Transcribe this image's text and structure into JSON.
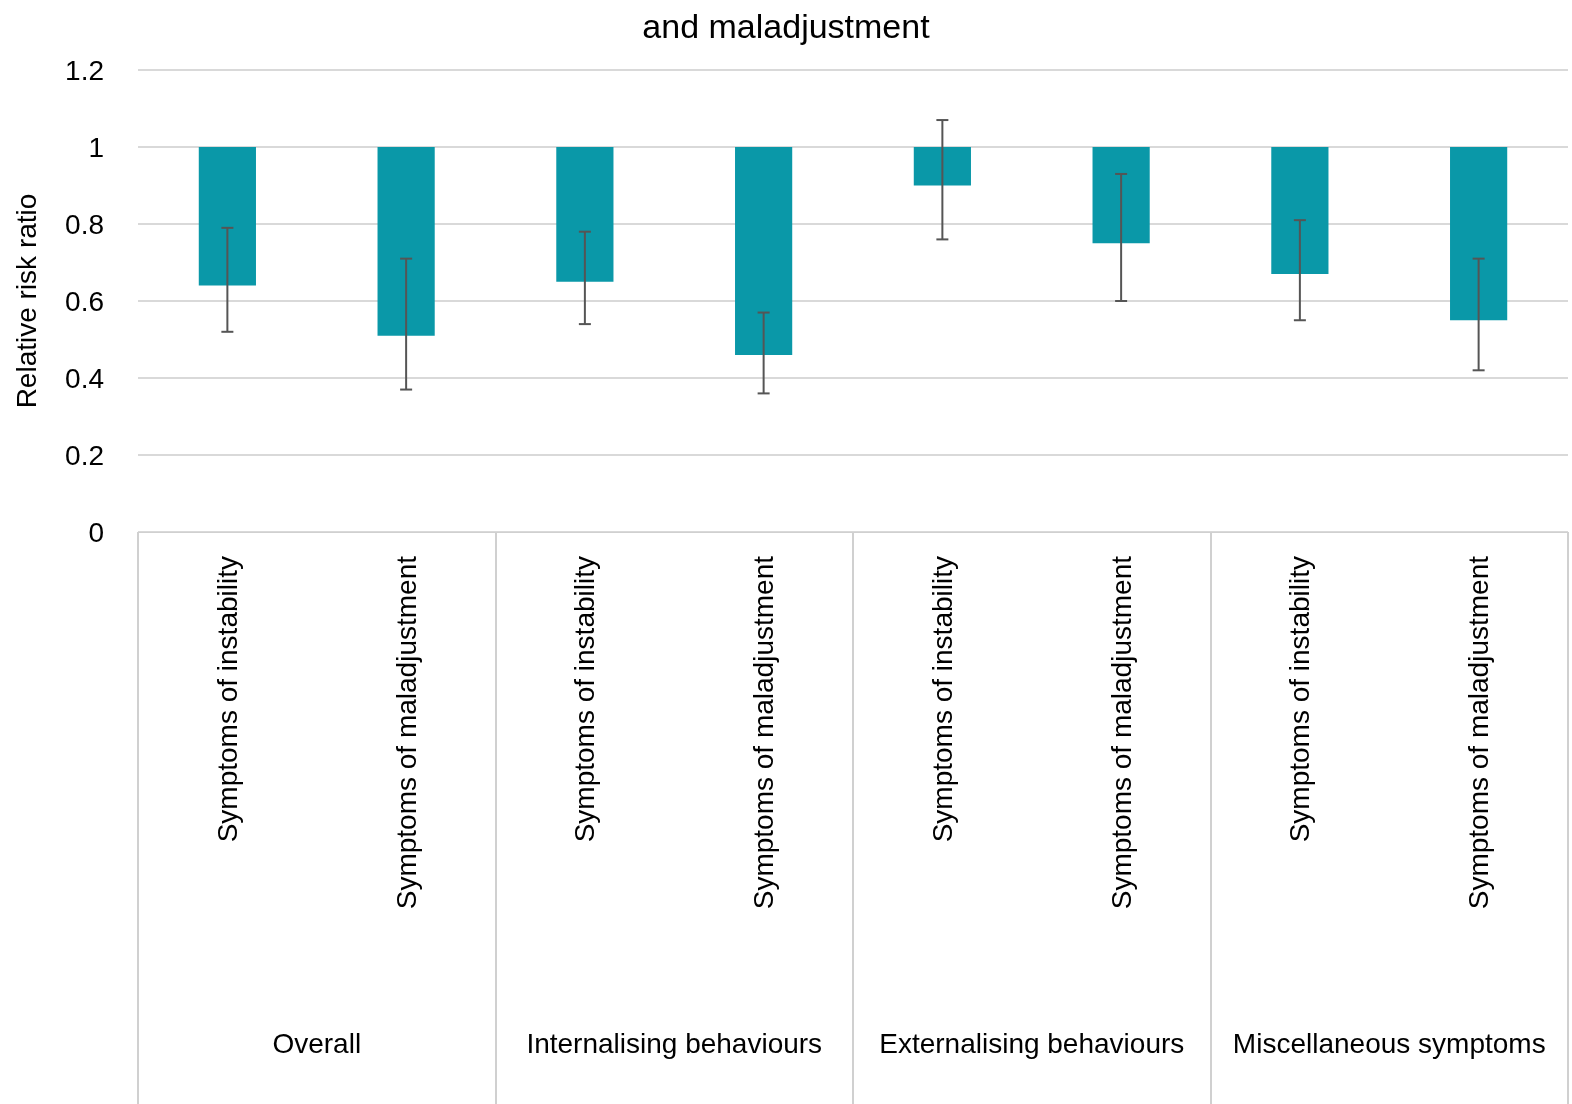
{
  "chart_data": {
    "type": "bar",
    "title": "and maladjustment",
    "ylabel": "Relative risk ratio",
    "categories": [
      "Symptoms of instability",
      "Symptoms of maladjustment",
      "Symptoms of instability",
      "Symptoms of maladjustment",
      "Symptoms of instability",
      "Symptoms of maladjustment",
      "Symptoms of instability",
      "Symptoms of maladjustment"
    ],
    "annotations": [
      "Overall",
      "Internalising behaviours",
      "Externalising behaviours",
      "Miscellaneous symptoms"
    ],
    "base": [
      1,
      1,
      1,
      1,
      1,
      1,
      1,
      1
    ],
    "values": [
      -0.36,
      -0.49,
      -0.35,
      -0.54,
      -0.1,
      -0.25,
      -0.33,
      -0.45
    ],
    "errors": [
      [
        0.52,
        0.79
      ],
      [
        0.37,
        0.71
      ],
      [
        0.54,
        0.78
      ],
      [
        0.36,
        0.57
      ],
      [
        0.76,
        1.07
      ],
      [
        0.6,
        0.93
      ],
      [
        0.55,
        0.81
      ],
      [
        0.42,
        0.71
      ]
    ],
    "color": "#0a98a8",
    "ylim": [
      0,
      1.2
    ],
    "yticks": [
      0,
      0.2,
      0.4,
      0.6,
      0.8,
      1,
      1.2
    ],
    "grid": "y",
    "legend": false
  }
}
